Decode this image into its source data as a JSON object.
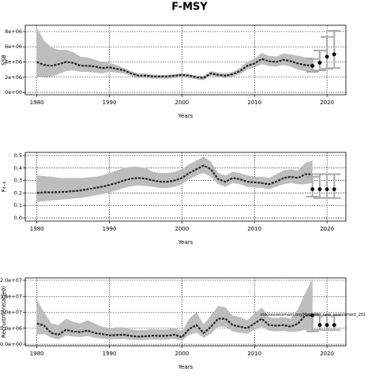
{
  "title": "F-MSY",
  "chart_data": [
    {
      "type": "line",
      "ylabel": "SSB",
      "xlabel": "Years",
      "x": [
        1980,
        1981,
        1982,
        1983,
        1984,
        1985,
        1986,
        1987,
        1988,
        1989,
        1990,
        1991,
        1992,
        1993,
        1994,
        1995,
        1996,
        1997,
        1998,
        1999,
        2000,
        2001,
        2002,
        2003,
        2004,
        2005,
        2006,
        2007,
        2008,
        2009,
        2010,
        2011,
        2012,
        2013,
        2014,
        2015,
        2016,
        2017,
        2018
      ],
      "values": [
        4000000,
        3600000,
        3500000,
        3700000,
        4000000,
        3900000,
        3500000,
        3500000,
        3400000,
        3200000,
        3300000,
        3100000,
        2900000,
        2500000,
        2200000,
        2200000,
        2100000,
        2100000,
        2100000,
        2200000,
        2300000,
        2200000,
        2000000,
        1900000,
        2500000,
        2300000,
        2200000,
        2400000,
        2800000,
        3500000,
        3800000,
        4400000,
        4100000,
        4000000,
        4300000,
        4100000,
        3800000,
        3600000,
        3500000
      ],
      "high": [
        8500000,
        6800000,
        5900000,
        5600000,
        5600000,
        5300000,
        4700000,
        4600000,
        4300000,
        4000000,
        3900000,
        3600000,
        3200000,
        2800000,
        2500000,
        2500000,
        2300000,
        2300000,
        2300000,
        2400000,
        2500000,
        2400000,
        2200000,
        2200000,
        2800000,
        2600000,
        2500000,
        2700000,
        3200000,
        4000000,
        4400000,
        5200000,
        4800000,
        4700000,
        5100000,
        5000000,
        4800000,
        4600000,
        4600000
      ],
      "low": [
        2000000,
        2000000,
        2100000,
        2400000,
        2800000,
        2900000,
        2700000,
        2700000,
        2600000,
        2500000,
        2700000,
        2600000,
        2500000,
        2200000,
        1900000,
        1900000,
        1800000,
        1800000,
        1800000,
        1900000,
        2000000,
        1900000,
        1700000,
        1600000,
        2200000,
        2000000,
        1900000,
        2100000,
        2400000,
        3000000,
        3300000,
        3700000,
        3500000,
        3400000,
        3600000,
        3400000,
        3000000,
        2800000,
        2600000
      ],
      "forecast": {
        "x": [
          2018,
          2019,
          2020,
          2021
        ],
        "values": [
          3500000,
          3900000,
          4700000,
          5000000
        ],
        "low": [
          2700000,
          2900000,
          3100000,
          3200000
        ],
        "high": [
          4400000,
          5500000,
          7300000,
          8100000
        ]
      },
      "xlim": [
        1978.4,
        2022.6
      ],
      "xticks": [
        1980,
        1990,
        2000,
        2010,
        2020
      ],
      "ylim": [
        -310000,
        8830000
      ],
      "yticks": [
        {
          "value": 0,
          "label": "0e+00"
        },
        {
          "value": 2000000,
          "label": "2e+06"
        },
        {
          "value": 4000000,
          "label": "4e+06"
        },
        {
          "value": 6000000,
          "label": "6e+06"
        },
        {
          "value": 8000000,
          "label": "8e+06"
        }
      ],
      "grid": true,
      "band_color": "#bdbdbd",
      "line_color": "#222222",
      "forecast_color": "#aaaaaa",
      "point_color": "#000000"
    },
    {
      "type": "line",
      "ylabel": "F₄₋₈",
      "xlabel": "Years",
      "x": [
        1980,
        1981,
        1982,
        1983,
        1984,
        1985,
        1986,
        1987,
        1988,
        1989,
        1990,
        1991,
        1992,
        1993,
        1994,
        1995,
        1996,
        1997,
        1998,
        1999,
        2000,
        2001,
        2002,
        2003,
        2004,
        2005,
        2006,
        2007,
        2008,
        2009,
        2010,
        2011,
        2012,
        2013,
        2014,
        2015,
        2016,
        2017,
        2018
      ],
      "values": [
        0.2,
        0.205,
        0.205,
        0.207,
        0.21,
        0.215,
        0.22,
        0.23,
        0.24,
        0.25,
        0.265,
        0.28,
        0.3,
        0.315,
        0.32,
        0.315,
        0.3,
        0.29,
        0.29,
        0.3,
        0.32,
        0.36,
        0.39,
        0.42,
        0.39,
        0.31,
        0.29,
        0.32,
        0.31,
        0.29,
        0.285,
        0.28,
        0.27,
        0.29,
        0.32,
        0.33,
        0.32,
        0.35,
        0.35
      ],
      "high": [
        0.34,
        0.335,
        0.33,
        0.32,
        0.32,
        0.32,
        0.32,
        0.325,
        0.33,
        0.34,
        0.36,
        0.38,
        0.4,
        0.41,
        0.41,
        0.4,
        0.37,
        0.36,
        0.36,
        0.37,
        0.39,
        0.43,
        0.46,
        0.49,
        0.45,
        0.36,
        0.34,
        0.37,
        0.36,
        0.34,
        0.33,
        0.33,
        0.32,
        0.35,
        0.38,
        0.39,
        0.38,
        0.44,
        0.46
      ],
      "low": [
        0.13,
        0.135,
        0.14,
        0.145,
        0.15,
        0.155,
        0.16,
        0.17,
        0.18,
        0.19,
        0.205,
        0.22,
        0.24,
        0.255,
        0.26,
        0.255,
        0.25,
        0.24,
        0.24,
        0.25,
        0.27,
        0.31,
        0.34,
        0.36,
        0.33,
        0.27,
        0.25,
        0.28,
        0.27,
        0.25,
        0.245,
        0.24,
        0.23,
        0.25,
        0.27,
        0.28,
        0.27,
        0.27,
        0.28
      ],
      "forecast": {
        "x": [
          2018,
          2019,
          2020,
          2021
        ],
        "values": [
          0.23,
          0.23,
          0.23,
          0.23
        ],
        "low": [
          0.17,
          0.16,
          0.16,
          0.16
        ],
        "high": [
          0.33,
          0.35,
          0.35,
          0.35
        ]
      },
      "xlim": [
        1978.4,
        2022.6
      ],
      "xticks": [
        1980,
        1990,
        2000,
        2010,
        2020
      ],
      "ylim": [
        -0.025,
        0.525
      ],
      "yticks": [
        {
          "value": 0,
          "label": "0.0"
        },
        0.1,
        0.2,
        0.3,
        0.4,
        0.5
      ],
      "grid": true,
      "band_color": "#bdbdbd",
      "line_color": "#222222",
      "forecast_color": "#aaaaaa",
      "point_color": "#000000"
    },
    {
      "type": "line",
      "ylabel": "Recruitment(age0)",
      "xlabel": "Years",
      "annotation": "stockassessment.org/Mackerel_new_assessment_201",
      "x": [
        1980,
        1981,
        1982,
        1983,
        1984,
        1985,
        1986,
        1987,
        1988,
        1989,
        1990,
        1991,
        1992,
        1993,
        1994,
        1995,
        1996,
        1997,
        1998,
        1999,
        2000,
        2001,
        2002,
        2003,
        2004,
        2005,
        2006,
        2007,
        2008,
        2009,
        2010,
        2011,
        2012,
        2013,
        2014,
        2015,
        2016,
        2017,
        2018
      ],
      "values": [
        6500000,
        5800000,
        3500000,
        3000000,
        4500000,
        4000000,
        3800000,
        4300000,
        3500000,
        3200000,
        2800000,
        2900000,
        3000000,
        2600000,
        2400000,
        2500000,
        2700000,
        2600000,
        2700000,
        3000000,
        2200000,
        4800000,
        6000000,
        3500000,
        5500000,
        8000000,
        8000000,
        6000000,
        5500000,
        5000000,
        6500000,
        8000000,
        6000000,
        5800000,
        6000000,
        5500000,
        6500000,
        9000000,
        9000000
      ],
      "high": [
        14000000,
        10000000,
        6500000,
        6000000,
        8000000,
        7000000,
        6500000,
        7500000,
        6500000,
        5500000,
        5000000,
        5300000,
        5300000,
        4700000,
        4400000,
        4500000,
        4800000,
        4600000,
        4700000,
        5200000,
        4000000,
        8000000,
        10000000,
        6200000,
        9000000,
        12000000,
        11500000,
        9000000,
        8500000,
        7500000,
        9500000,
        11500000,
        8500000,
        8200000,
        8500000,
        8000000,
        11000000,
        16000000,
        20500000
      ],
      "low": [
        3000000,
        3300000,
        2000000,
        1600000,
        2700000,
        2400000,
        2300000,
        2600000,
        2000000,
        1800000,
        1600000,
        1600000,
        1700000,
        1400000,
        1300000,
        1400000,
        1500000,
        1400000,
        1500000,
        1700000,
        1200000,
        2900000,
        3600000,
        2000000,
        3300000,
        5500000,
        5500000,
        4000000,
        3600000,
        3300000,
        4500000,
        5500000,
        4200000,
        4000000,
        4200000,
        3800000,
        4000000,
        4500000,
        4000000
      ],
      "forecast": {
        "x": [
          2018,
          2019,
          2020,
          2021
        ],
        "values": [
          9000000,
          6000000,
          6000000,
          6000000
        ],
        "low": [
          4000000,
          4500000,
          4500000,
          4500000
        ],
        "high": [
          9500000,
          9000000,
          9000000,
          9000000
        ]
      },
      "xlim": [
        1978.4,
        2022.6
      ],
      "xticks": [
        1980,
        1990,
        2000,
        2010,
        2020
      ],
      "ylim": [
        -490000,
        20740000
      ],
      "yticks": [
        {
          "value": 0,
          "label": "0.0e+00"
        },
        {
          "value": 5000000,
          "label": "5.0e+06"
        },
        {
          "value": 10000000,
          "label": "1.0e+07"
        },
        {
          "value": 15000000,
          "label": "1.5e+07"
        },
        {
          "value": 20000000,
          "label": "2.0e+07"
        }
      ],
      "grid": true,
      "band_color": "#bdbdbd",
      "line_color": "#222222",
      "forecast_color": "#aaaaaa",
      "point_color": "#000000"
    }
  ]
}
